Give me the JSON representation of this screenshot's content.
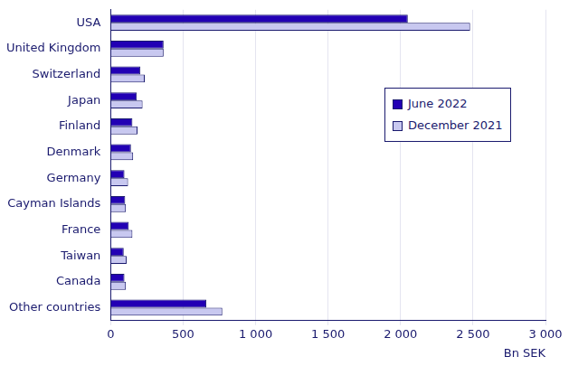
{
  "chart_data": {
    "type": "bar",
    "orientation": "horizontal",
    "grid": true,
    "legend": "right",
    "x_label": "Bn SEK",
    "categories": [
      "USA",
      "United Kingdom",
      "Switzerland",
      "Japan",
      "Finland",
      "Denmark",
      "Germany",
      "Cayman Islands",
      "France",
      "Taiwan",
      "Canada",
      "Other countries"
    ],
    "series": [
      {
        "name": "June 2022",
        "color": "#2200b4",
        "values": [
          2050,
          365,
          205,
          180,
          150,
          140,
          95,
          100,
          125,
          90,
          95,
          660
        ]
      },
      {
        "name": "December 2021",
        "color": "#c8c8f0",
        "values": [
          2480,
          365,
          235,
          220,
          185,
          155,
          120,
          105,
          150,
          110,
          105,
          770
        ]
      }
    ],
    "xlim": [
      0,
      3000
    ],
    "xticks": [
      0,
      500,
      {
        "value": 1000,
        "label": "1 000"
      },
      {
        "value": 1500,
        "label": "1 500"
      },
      {
        "value": 2000,
        "label": "2 000"
      },
      {
        "value": 2500,
        "label": "2 500"
      },
      {
        "value": 3000,
        "label": "3 000"
      }
    ]
  }
}
